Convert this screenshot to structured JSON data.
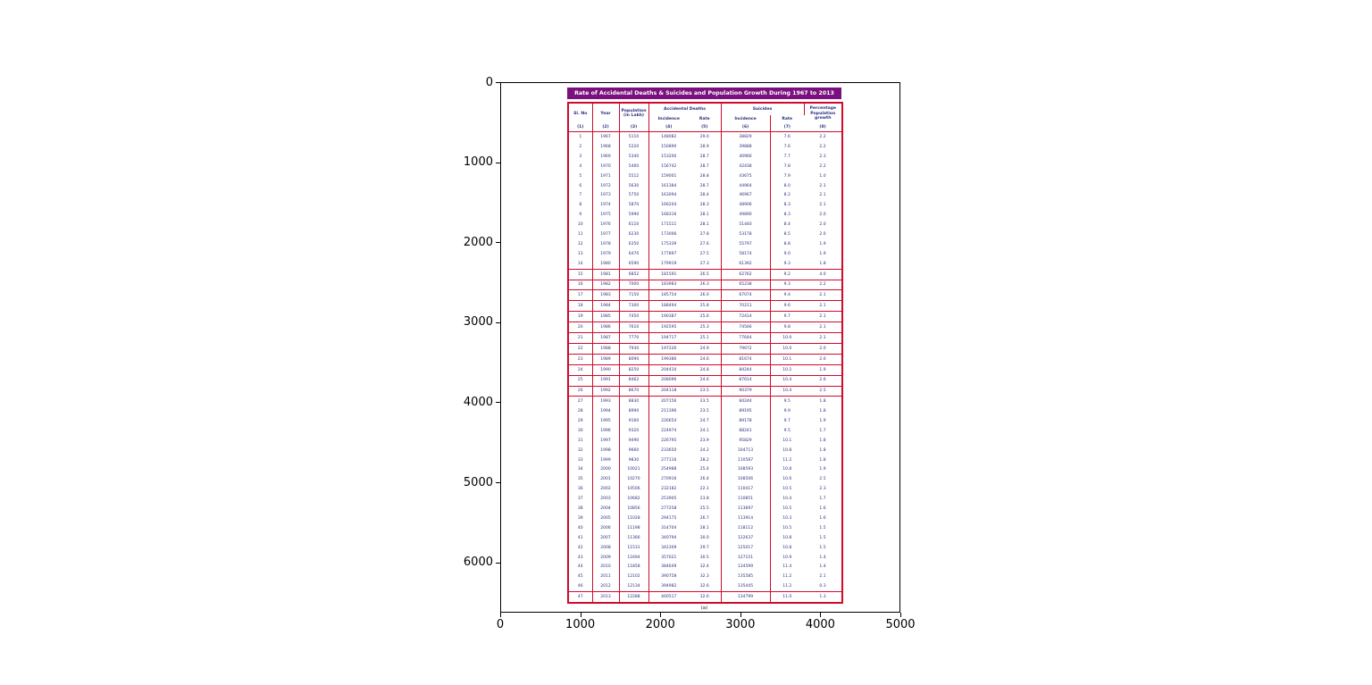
{
  "colors": {
    "border_red": "#CF0A2C",
    "title_bg": "#7A117E",
    "cell_text": "#2A2F7E"
  },
  "figure": {
    "background": "#ffffff",
    "x_ticks": [
      "0",
      "1000",
      "2000",
      "3000",
      "4000",
      "5000"
    ],
    "y_ticks": [
      "0",
      "1000",
      "2000",
      "3000",
      "4000",
      "5000",
      "6000"
    ]
  },
  "table": {
    "title": "Rate of Accidental Deaths & Suicides and Population Growth During 1967 to 2013",
    "caption": "(a)",
    "columns": {
      "sl_no": "Sl. No",
      "year": "Year",
      "population": "Population (in Lakh)",
      "accidental": "Accidental Deaths",
      "suicides": "Suicides",
      "incidence": "Incidence",
      "rate": "Rate",
      "pct_growth": "Percentage Population growth"
    },
    "col_numbers": [
      "(1)",
      "(2)",
      "(3)",
      "(4)",
      "(5)",
      "(6)",
      "(7)",
      "(8)"
    ]
  },
  "chart_data": {
    "type": "table",
    "title": "Rate of Accidental Deaths & Suicides and Population Growth During 1967 to 2013",
    "columns": [
      "Sl. No",
      "Year",
      "Population (in Lakh)",
      "Accidental Deaths - Incidence",
      "Accidental Deaths - Rate",
      "Suicides - Incidence",
      "Suicides - Rate",
      "Percentage Population growth"
    ],
    "x_axis_range": [
      0,
      5000
    ],
    "y_axis_range": [
      0,
      6000
    ],
    "rows": [
      [
        "1",
        "1967",
        "5110",
        "148082",
        "29.0",
        "38829",
        "7.6",
        "2.2"
      ],
      [
        "2",
        "1968",
        "5220",
        "150890",
        "28.9",
        "39888",
        "7.6",
        "2.2"
      ],
      [
        "3",
        "1969",
        "5340",
        "153200",
        "28.7",
        "40966",
        "7.7",
        "2.3"
      ],
      [
        "4",
        "1970",
        "5460",
        "156742",
        "28.7",
        "42438",
        "7.8",
        "2.2"
      ],
      [
        "5",
        "1971",
        "5512",
        "159001",
        "28.8",
        "43675",
        "7.9",
        "1.0"
      ],
      [
        "6",
        "1972",
        "5630",
        "161384",
        "28.7",
        "44964",
        "8.0",
        "2.1"
      ],
      [
        "7",
        "1973",
        "5750",
        "163094",
        "28.4",
        "46967",
        "8.2",
        "2.1"
      ],
      [
        "8",
        "1974",
        "5870",
        "166204",
        "28.3",
        "48906",
        "8.3",
        "2.1"
      ],
      [
        "9",
        "1975",
        "5990",
        "168316",
        "28.1",
        "49890",
        "8.3",
        "2.0"
      ],
      [
        "10",
        "1976",
        "6110",
        "171511",
        "28.1",
        "51440",
        "8.4",
        "2.0"
      ],
      [
        "11",
        "1977",
        "6230",
        "173006",
        "27.8",
        "53178",
        "8.5",
        "2.0"
      ],
      [
        "12",
        "1978",
        "6350",
        "175339",
        "27.6",
        "55797",
        "8.8",
        "1.9"
      ],
      [
        "13",
        "1979",
        "6470",
        "177897",
        "27.5",
        "58174",
        "9.0",
        "1.9"
      ],
      [
        "14",
        "1980",
        "6590",
        "179919",
        "27.3",
        "61392",
        "9.3",
        "1.8"
      ],
      [
        "15",
        "1981",
        "6852",
        "181591",
        "26.5",
        "62762",
        "9.2",
        "4.0"
      ],
      [
        "16",
        "1982",
        "7000",
        "183983",
        "26.3",
        "65238",
        "9.3",
        "2.2"
      ],
      [
        "17",
        "1983",
        "7150",
        "185754",
        "26.0",
        "67074",
        "9.4",
        "2.1"
      ],
      [
        "18",
        "1984",
        "7300",
        "188494",
        "25.8",
        "70211",
        "9.6",
        "2.1"
      ],
      [
        "19",
        "1985",
        "7450",
        "190387",
        "25.6",
        "72414",
        "9.7",
        "2.1"
      ],
      [
        "20",
        "1986",
        "7610",
        "192595",
        "25.3",
        "74566",
        "9.8",
        "2.1"
      ],
      [
        "21",
        "1987",
        "7770",
        "194717",
        "25.1",
        "77644",
        "10.0",
        "2.1"
      ],
      [
        "22",
        "1988",
        "7930",
        "197226",
        "24.9",
        "79672",
        "10.0",
        "2.0"
      ],
      [
        "23",
        "1989",
        "8090",
        "199386",
        "24.6",
        "81674",
        "10.1",
        "2.0"
      ],
      [
        "24",
        "1990",
        "8250",
        "204410",
        "24.8",
        "84244",
        "10.2",
        "1.9"
      ],
      [
        "25",
        "1991",
        "8462",
        "208096",
        "24.6",
        "87614",
        "10.4",
        "2.6"
      ],
      [
        "26",
        "1992",
        "8670",
        "204118",
        "23.5",
        "90379",
        "10.4",
        "2.5"
      ],
      [
        "27",
        "1993",
        "8830",
        "207156",
        "23.5",
        "84244",
        "9.5",
        "1.8"
      ],
      [
        "28",
        "1994",
        "8990",
        "211396",
        "23.5",
        "89195",
        "9.9",
        "1.8"
      ],
      [
        "29",
        "1995",
        "9160",
        "226654",
        "24.7",
        "89178",
        "9.7",
        "1.9"
      ],
      [
        "30",
        "1996",
        "9320",
        "224974",
        "24.1",
        "88241",
        "9.5",
        "1.7"
      ],
      [
        "31",
        "1997",
        "9490",
        "226795",
        "23.9",
        "95829",
        "10.1",
        "1.8"
      ],
      [
        "32",
        "1998",
        "9660",
        "233650",
        "24.2",
        "104713",
        "10.8",
        "1.8"
      ],
      [
        "33",
        "1999",
        "9830",
        "277116",
        "28.2",
        "110587",
        "11.2",
        "1.8"
      ],
      [
        "34",
        "2000",
        "10021",
        "254988",
        "25.4",
        "108593",
        "10.8",
        "1.9"
      ],
      [
        "35",
        "2001",
        "10270",
        "270916",
        "26.4",
        "108506",
        "10.6",
        "2.5"
      ],
      [
        "36",
        "2002",
        "10506",
        "232182",
        "22.1",
        "110417",
        "10.5",
        "2.3"
      ],
      [
        "37",
        "2003",
        "10682",
        "253905",
        "23.8",
        "110851",
        "10.4",
        "1.7"
      ],
      [
        "38",
        "2004",
        "10856",
        "277258",
        "25.5",
        "113697",
        "10.5",
        "1.6"
      ],
      [
        "39",
        "2005",
        "11028",
        "294175",
        "26.7",
        "113914",
        "10.3",
        "1.6"
      ],
      [
        "40",
        "2006",
        "11198",
        "314704",
        "28.1",
        "118112",
        "10.5",
        "1.5"
      ],
      [
        "41",
        "2007",
        "11366",
        "340794",
        "30.0",
        "122637",
        "10.8",
        "1.5"
      ],
      [
        "42",
        "2008",
        "11531",
        "342309",
        "29.7",
        "125017",
        "10.8",
        "1.5"
      ],
      [
        "43",
        "2009",
        "11694",
        "357021",
        "30.5",
        "127151",
        "10.9",
        "1.4"
      ],
      [
        "44",
        "2010",
        "11858",
        "384649",
        "32.4",
        "134599",
        "11.4",
        "1.4"
      ],
      [
        "45",
        "2011",
        "12102",
        "390758",
        "32.3",
        "135585",
        "11.2",
        "2.1"
      ],
      [
        "46",
        "2012",
        "12134",
        "394982",
        "32.6",
        "135445",
        "11.2",
        "0.3"
      ],
      [
        "47",
        "2013",
        "12288",
        "400517",
        "32.6",
        "134799",
        "11.0",
        "1.3"
      ]
    ]
  }
}
